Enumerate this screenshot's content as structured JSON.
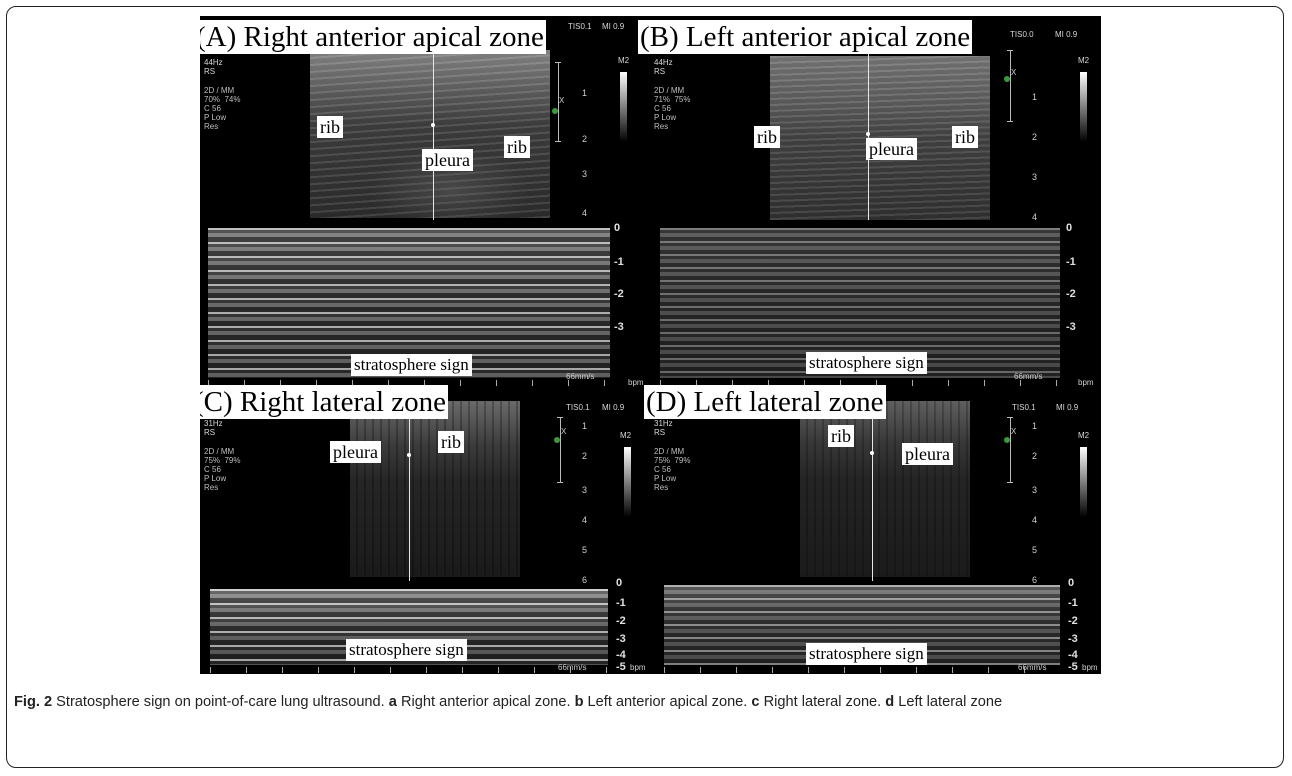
{
  "figure": {
    "panels": [
      {
        "id": "A",
        "title": "(A) Right anterior apical zone",
        "header": "44Hz\nRS",
        "settings": "2D / MM\n70%  74%\nC 56\nP Low\nRes",
        "tis": "TIS0.1",
        "mi": "MI 0.9",
        "depth_ticks": [
          "1",
          "2",
          "3",
          "4"
        ],
        "mmode_ticks": [
          "0",
          "-1",
          "-2",
          "-3"
        ],
        "m2": "M2",
        "x_marker": "X",
        "labels": {
          "rib_left": "rib",
          "pleura": "pleura",
          "rib_right": "rib",
          "sign": "stratosphere sign"
        },
        "speed": "66mm/s",
        "bpm": "bpm"
      },
      {
        "id": "B",
        "title": "(B) Left anterior apical zone",
        "header": "44Hz\nRS",
        "settings": "2D / MM\n71%  75%\nC 56\nP Low\nRes",
        "tis": "TIS0.0",
        "mi": "MI 0.9",
        "depth_ticks": [
          "1",
          "2",
          "3",
          "4"
        ],
        "mmode_ticks": [
          "0",
          "-1",
          "-2",
          "-3"
        ],
        "m2": "M2",
        "x_marker": "X",
        "labels": {
          "rib_left": "rib",
          "pleura": "pleura",
          "rib_right": "rib",
          "sign": "stratosphere sign"
        },
        "speed": "66mm/s",
        "bpm": "bpm"
      },
      {
        "id": "C",
        "title": "(C) Right lateral zone",
        "header": "31Hz\nRS",
        "settings": "2D / MM\n75%  79%\nC 56\nP Low\nRes",
        "tis": "TIS0.1",
        "mi": "MI 0.9",
        "depth_ticks": [
          "1",
          "2",
          "3",
          "4",
          "5",
          "6"
        ],
        "mmode_ticks": [
          "0",
          "-1",
          "-2",
          "-3",
          "-4",
          "-5"
        ],
        "m2": "M2",
        "x_marker": "X",
        "labels": {
          "pleura": "pleura",
          "rib": "rib",
          "sign": "stratosphere sign"
        },
        "speed": "66mm/s",
        "bpm": "bpm"
      },
      {
        "id": "D",
        "title": "(D) Left lateral zone",
        "header": "31Hz\nRS",
        "settings": "2D / MM\n75%  79%\nC 56\nP Low\nRes",
        "tis": "TIS0.1",
        "mi": "MI 0.9",
        "depth_ticks": [
          "1",
          "2",
          "3",
          "4",
          "5",
          "6"
        ],
        "mmode_ticks": [
          "0",
          "-1",
          "-2",
          "-3",
          "-4",
          "-5"
        ],
        "m2": "M2",
        "x_marker": "X",
        "labels": {
          "rib": "rib",
          "pleura": "pleura",
          "sign": "stratosphere sign"
        },
        "speed": "66mm/s",
        "bpm": "bpm"
      }
    ]
  },
  "caption": {
    "fig_label": "Fig. 2",
    "text": " Stratosphere sign on point-of-care lung ultrasound. ",
    "items": [
      {
        "letter": "a",
        "text": " Right anterior apical zone. "
      },
      {
        "letter": "b",
        "text": " Left anterior apical zone. "
      },
      {
        "letter": "c",
        "text": " Right lateral zone. "
      },
      {
        "letter": "d",
        "text": " Left lateral zone"
      }
    ]
  }
}
